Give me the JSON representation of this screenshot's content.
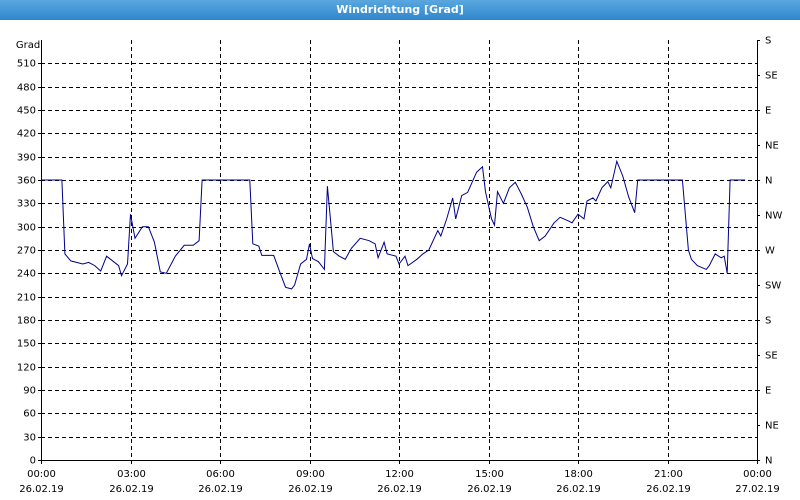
{
  "chart_data": {
    "type": "line",
    "title": "Windrichtung [Grad]",
    "ylabel": "Grad",
    "xlim": [
      0,
      24
    ],
    "xticks": [
      {
        "value": 0,
        "label": "00:00"
      },
      {
        "value": 3,
        "label": "03:00"
      },
      {
        "value": 6,
        "label": "06:00"
      },
      {
        "value": 9,
        "label": "09:00"
      },
      {
        "value": 12,
        "label": "12:00"
      },
      {
        "value": 15,
        "label": "15:00"
      },
      {
        "value": 18,
        "label": "18:00"
      },
      {
        "value": 21,
        "label": "21:00"
      },
      {
        "value": 24,
        "label": "00:00"
      }
    ],
    "x_dates": [
      "26.02.19",
      "26.02.19",
      "26.02.19",
      "26.02.19",
      "26.02.19",
      "26.02.19",
      "26.02.19",
      "26.02.19",
      "27.02.19"
    ],
    "ylim": [
      0,
      540
    ],
    "yticks": [
      0,
      30,
      60,
      90,
      120,
      150,
      180,
      210,
      240,
      270,
      300,
      330,
      360,
      390,
      420,
      450,
      480,
      510
    ],
    "y2lim": [
      0,
      540
    ],
    "y2ticks": [
      {
        "value": 0,
        "label": "N"
      },
      {
        "value": 45,
        "label": "NE"
      },
      {
        "value": 90,
        "label": "E"
      },
      {
        "value": 135,
        "label": "SE"
      },
      {
        "value": 180,
        "label": "S"
      },
      {
        "value": 225,
        "label": "SW"
      },
      {
        "value": 270,
        "label": "W"
      },
      {
        "value": 315,
        "label": "NW"
      },
      {
        "value": 360,
        "label": "N"
      },
      {
        "value": 405,
        "label": "NE"
      },
      {
        "value": 450,
        "label": "E"
      },
      {
        "value": 495,
        "label": "SE"
      },
      {
        "value": 540,
        "label": "S"
      }
    ],
    "grid": true,
    "series": [
      {
        "color": "#00008b",
        "x": [
          0,
          0.7,
          0.8,
          1.0,
          1.4,
          1.6,
          1.8,
          2.0,
          2.2,
          2.6,
          2.7,
          2.9,
          3.0,
          3.15,
          3.4,
          3.6,
          3.8,
          4.0,
          4.2,
          4.5,
          4.8,
          5.1,
          5.3,
          5.4,
          7.0,
          7.1,
          7.3,
          7.4,
          7.8,
          8.0,
          8.2,
          8.4,
          8.5,
          8.7,
          8.9,
          9.0,
          9.1,
          9.3,
          9.5,
          9.6,
          9.8,
          10.0,
          10.2,
          10.4,
          10.7,
          11.0,
          11.2,
          11.3,
          11.5,
          11.6,
          11.9,
          12.0,
          12.2,
          12.3,
          12.6,
          12.8,
          13.0,
          13.3,
          13.4,
          13.6,
          13.8,
          13.9,
          14.1,
          14.3,
          14.6,
          14.8,
          14.9,
          15.1,
          15.2,
          15.3,
          15.5,
          15.7,
          15.9,
          16.1,
          16.3,
          16.5,
          16.7,
          16.9,
          17.2,
          17.4,
          17.7,
          17.8,
          18.0,
          18.2,
          18.3,
          18.5,
          18.6,
          18.8,
          19.0,
          19.1,
          19.3,
          19.5,
          19.7,
          19.9,
          20.0,
          21.5,
          21.7,
          21.8,
          22.0,
          22.3,
          22.4,
          22.6,
          22.8,
          22.9,
          23.0,
          23.1,
          23.6
        ],
        "values": [
          360,
          360,
          265,
          256,
          252,
          254,
          250,
          243,
          262,
          250,
          237,
          252,
          316,
          285,
          300,
          300,
          280,
          242,
          240,
          262,
          276,
          276,
          282,
          360,
          360,
          278,
          275,
          263,
          263,
          242,
          222,
          220,
          225,
          252,
          258,
          278,
          259,
          255,
          245,
          352,
          268,
          262,
          258,
          272,
          285,
          282,
          278,
          260,
          280,
          265,
          262,
          252,
          262,
          250,
          258,
          265,
          270,
          295,
          288,
          310,
          337,
          310,
          340,
          344,
          370,
          377,
          345,
          310,
          302,
          345,
          330,
          350,
          357,
          342,
          325,
          300,
          282,
          288,
          305,
          312,
          307,
          305,
          316,
          310,
          333,
          337,
          333,
          350,
          358,
          350,
          384,
          365,
          338,
          318,
          360,
          360,
          270,
          258,
          250,
          245,
          250,
          265,
          260,
          262,
          240,
          360,
          360
        ]
      }
    ]
  }
}
